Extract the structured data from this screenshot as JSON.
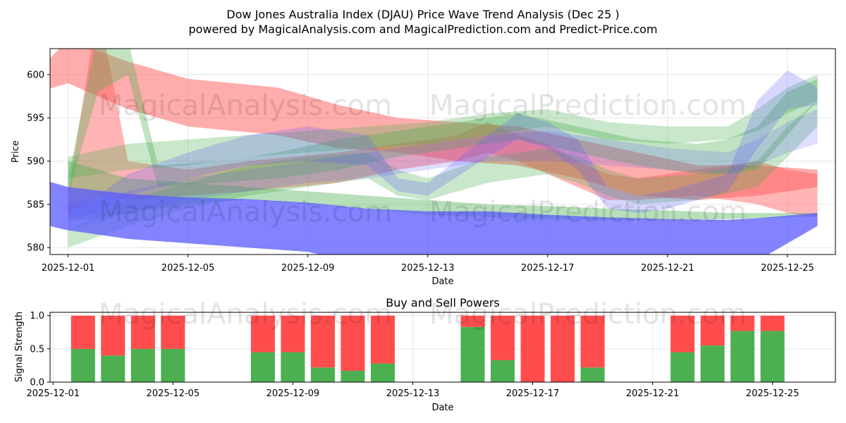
{
  "title_line1": "Dow Jones Australia Index (DJAU) Price Wave Trend Analysis (Dec 25 )",
  "title_line2": "powered by MagicalAnalysis.com and MagicalPrediction.com and Predict-Price.com",
  "watermarks": [
    "MagicalAnalysis.com",
    "MagicalPrediction.com"
  ],
  "colors": {
    "red_band": "#ff5a5a",
    "green_band": "#4caf50",
    "blue_band": "#5a5aff",
    "buy": "#4caf50",
    "sell": "#ff4d4d",
    "grid": "#e6e6e6"
  },
  "chart_data": [
    {
      "type": "area",
      "title": "",
      "xlabel": "Date",
      "ylabel": "Price",
      "x_range_days": [
        -0.6,
        25.6
      ],
      "ylim": [
        579.2,
        603
      ],
      "x_ticks": [
        {
          "day": 0,
          "label": "2025-12-01"
        },
        {
          "day": 4,
          "label": "2025-12-05"
        },
        {
          "day": 8,
          "label": "2025-12-09"
        },
        {
          "day": 12,
          "label": "2025-12-13"
        },
        {
          "day": 16,
          "label": "2025-12-17"
        },
        {
          "day": 20,
          "label": "2025-12-21"
        },
        {
          "day": 24,
          "label": "2025-12-25"
        }
      ],
      "y_ticks": [
        580,
        585,
        590,
        595,
        600
      ],
      "series": [
        {
          "name": "red-wave-upper",
          "color": "red",
          "opacity": 0.5,
          "days": [
            -1,
            0,
            2,
            4,
            7,
            9,
            11,
            13,
            15,
            17,
            19,
            21,
            23,
            25
          ],
          "low": [
            598,
            599,
            596,
            594,
            593,
            591.5,
            591,
            590,
            589.5,
            588,
            586,
            585.5,
            586,
            587
          ],
          "high": [
            600.5,
            604,
            601.5,
            599.5,
            598.5,
            596.5,
            595,
            594.5,
            594,
            592.5,
            591,
            589.5,
            589.5,
            589
          ]
        },
        {
          "name": "red-wave-lower",
          "color": "red",
          "opacity": 0.45,
          "days": [
            0,
            1,
            2,
            4,
            6,
            9,
            11,
            13,
            14,
            15,
            16,
            17,
            18,
            19,
            21,
            23,
            24,
            25
          ],
          "low": [
            584,
            586,
            585.5,
            586,
            586.5,
            587.5,
            589,
            590,
            591,
            590,
            588.5,
            587,
            585.5,
            585.5,
            586,
            585,
            584,
            583.5
          ],
          "high": [
            586,
            608,
            590,
            589,
            590,
            591,
            592,
            593,
            594.5,
            593,
            592,
            590,
            588.5,
            588,
            589,
            590,
            589,
            588.5
          ]
        },
        {
          "name": "green-wave-high",
          "color": "green",
          "opacity": 0.35,
          "days": [
            0,
            1,
            2,
            3,
            5,
            7,
            9,
            11,
            13,
            15,
            17,
            19,
            21,
            22,
            23,
            24,
            25
          ],
          "low": [
            586,
            598,
            600,
            587,
            587.5,
            588,
            589,
            590.5,
            591.5,
            592.5,
            591,
            589.5,
            588.5,
            588.5,
            589,
            593,
            597
          ],
          "high": [
            588,
            605,
            604,
            589.5,
            590,
            591,
            592.5,
            593.5,
            594.5,
            595.5,
            594,
            592.5,
            592,
            592.5,
            594,
            598,
            599.5
          ]
        },
        {
          "name": "green-wave-mid",
          "color": "green",
          "opacity": 0.3,
          "days": [
            0,
            2,
            4,
            6,
            8,
            10,
            12,
            14,
            16,
            18,
            20,
            22,
            23,
            24,
            25
          ],
          "low": [
            588,
            589,
            589.5,
            590.5,
            591,
            591.5,
            592,
            593,
            594,
            592.5,
            592,
            592.5,
            593.5,
            595.5,
            597
          ],
          "high": [
            590.5,
            592,
            592.5,
            593,
            593.5,
            594,
            594.5,
            595.5,
            596,
            594.5,
            594,
            594,
            596,
            598.5,
            600
          ]
        },
        {
          "name": "green-wave-low",
          "color": "green",
          "opacity": 0.3,
          "days": [
            0,
            2,
            4,
            6,
            8,
            10,
            11,
            12,
            14,
            16,
            17,
            18,
            19,
            21,
            23,
            24,
            25
          ],
          "low": [
            580,
            582.5,
            584.5,
            586,
            587,
            588,
            586,
            585.5,
            587.5,
            588.5,
            587.5,
            586,
            585,
            585.5,
            587,
            590.5,
            594
          ],
          "high": [
            582,
            585.5,
            587.5,
            589.5,
            590.5,
            591,
            589,
            588,
            590.5,
            591.5,
            590.5,
            589,
            588,
            588.5,
            590,
            594,
            597
          ]
        },
        {
          "name": "green-wave-base",
          "color": "green",
          "opacity": 0.4,
          "days": [
            0,
            2,
            4,
            6,
            8,
            10,
            12,
            14,
            16,
            18,
            20,
            22,
            24,
            25
          ],
          "low": [
            583,
            584,
            585,
            585.5,
            585,
            584.5,
            583.8,
            583.5,
            583.3,
            583.2,
            583.2,
            583.3,
            583.5,
            583.6
          ],
          "high": [
            590,
            588,
            587.5,
            587,
            586.5,
            586,
            585.5,
            585,
            584.8,
            584.5,
            584.3,
            584,
            584,
            584
          ]
        },
        {
          "name": "blue-wave-upper",
          "color": "blue",
          "opacity": 0.25,
          "days": [
            0,
            1,
            2,
            4,
            6,
            8,
            10,
            11,
            12,
            14,
            15,
            16,
            17,
            18,
            19,
            20,
            22,
            23,
            24,
            25
          ],
          "low": [
            583.5,
            584,
            586,
            588,
            589.5,
            590,
            589.5,
            586.5,
            586,
            590.5,
            592.5,
            591.5,
            589,
            584.5,
            584,
            584.5,
            586.5,
            591.5,
            596,
            596.5
          ],
          "high": [
            585,
            586,
            588.5,
            591,
            593,
            594,
            593,
            588,
            587.5,
            593,
            595.5,
            594.5,
            592.5,
            587,
            586,
            586.5,
            588.5,
            597,
            600.5,
            598.5
          ]
        },
        {
          "name": "blue-wave-mid",
          "color": "blue",
          "opacity": 0.2,
          "days": [
            0,
            2,
            4,
            6,
            8,
            10,
            12,
            14,
            16,
            18,
            20,
            22,
            23,
            24,
            25
          ],
          "low": [
            582,
            584,
            585.5,
            586.5,
            587.5,
            588,
            589,
            590,
            590,
            589.5,
            589,
            588.5,
            589.5,
            591,
            592
          ],
          "high": [
            584.5,
            586.5,
            588,
            589,
            590,
            591,
            592,
            593,
            593.5,
            592.5,
            591.5,
            591,
            592.5,
            594.5,
            596
          ]
        },
        {
          "name": "blue-wave-lower",
          "color": "blue",
          "opacity": 0.75,
          "days": [
            -1,
            0,
            2,
            4,
            6,
            8,
            10,
            12,
            14,
            16,
            18,
            20,
            22,
            23,
            24,
            25
          ],
          "low": [
            582.8,
            582,
            581,
            580.5,
            580,
            579.5,
            578,
            577,
            576.5,
            576.5,
            576.5,
            577,
            577.5,
            578.5,
            580.5,
            582.5
          ],
          "high": [
            588,
            587,
            586.2,
            585.8,
            585.6,
            585.2,
            584.5,
            584.2,
            584.2,
            583.8,
            583.5,
            583.3,
            583.2,
            583.4,
            583.7,
            584
          ]
        }
      ]
    },
    {
      "type": "bar",
      "title": "Buy and Sell Powers",
      "xlabel": "Date",
      "ylabel": "Signal Strength",
      "x_range_days": [
        -0.6,
        25.6
      ],
      "ylim": [
        0,
        1.05
      ],
      "y_ticks": [
        "0.0",
        "0.5",
        "1.0"
      ],
      "x_ticks": [
        {
          "day": 0,
          "label": "2025-12-01"
        },
        {
          "day": 4,
          "label": "2025-12-05"
        },
        {
          "day": 8,
          "label": "2025-12-09"
        },
        {
          "day": 12,
          "label": "2025-12-13"
        },
        {
          "day": 16,
          "label": "2025-12-17"
        },
        {
          "day": 20,
          "label": "2025-12-21"
        },
        {
          "day": 24,
          "label": "2025-12-25"
        }
      ],
      "days": [
        1,
        2,
        3,
        4,
        7,
        8,
        9,
        10,
        11,
        14,
        15,
        16,
        17,
        18,
        21,
        22,
        23,
        24
      ],
      "buy": [
        0.5,
        0.4,
        0.5,
        0.5,
        0.45,
        0.45,
        0.22,
        0.17,
        0.28,
        0.83,
        0.33,
        0.0,
        0.0,
        0.22,
        0.45,
        0.55,
        0.77,
        0.77
      ],
      "sell": [
        0.5,
        0.6,
        0.5,
        0.5,
        0.55,
        0.55,
        0.78,
        0.83,
        0.72,
        0.17,
        0.67,
        1.0,
        1.0,
        0.78,
        0.55,
        0.45,
        0.23,
        0.23
      ]
    }
  ]
}
